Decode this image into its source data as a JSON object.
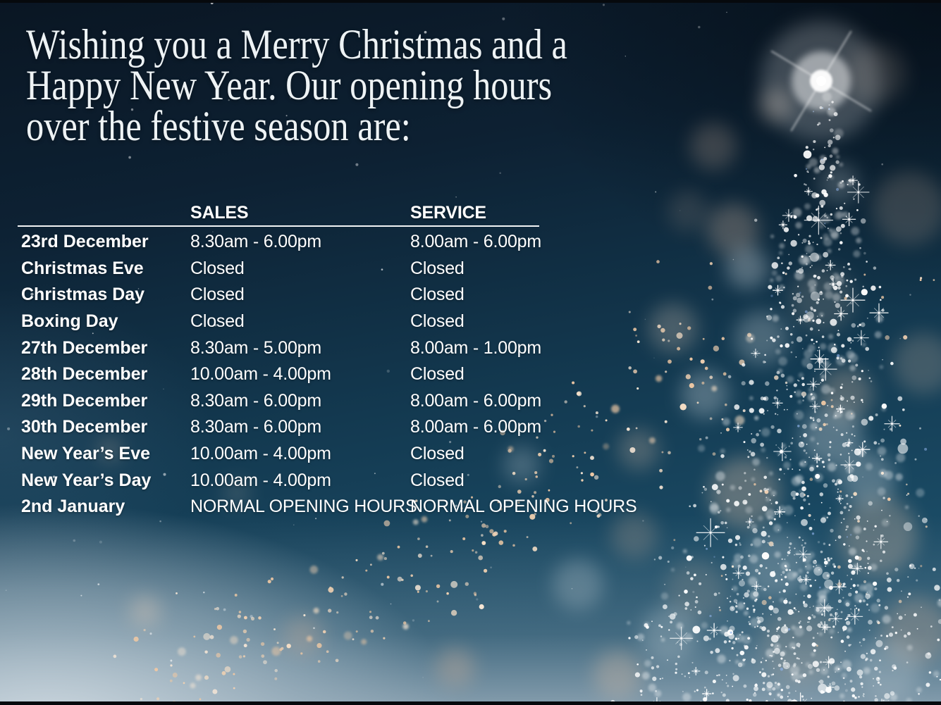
{
  "heading": {
    "line1": "Wishing you a Merry Christmas and a",
    "line2": "Happy New Year. Our opening hours",
    "line3": "over the festive season are:"
  },
  "table": {
    "columns": [
      "SALES",
      "SERVICE"
    ],
    "rows": [
      {
        "label": "23rd December",
        "sales": "8.30am - 6.00pm",
        "service": "8.00am - 6.00pm"
      },
      {
        "label": "Christmas Eve",
        "sales": "Closed",
        "service": "Closed"
      },
      {
        "label": "Christmas Day",
        "sales": "Closed",
        "service": "Closed"
      },
      {
        "label": "Boxing Day",
        "sales": "Closed",
        "service": "Closed"
      },
      {
        "label": "27th December",
        "sales": "8.30am - 5.00pm",
        "service": "8.00am - 1.00pm"
      },
      {
        "label": "28th December",
        "sales": "10.00am - 4.00pm",
        "service": "Closed"
      },
      {
        "label": "29th December",
        "sales": "8.30am - 6.00pm",
        "service": "8.00am - 6.00pm"
      },
      {
        "label": "30th December",
        "sales": "8.30am - 6.00pm",
        "service": "8.00am - 6.00pm"
      },
      {
        "label": "New Year’s Eve",
        "sales": "10.00am - 4.00pm",
        "service": "Closed"
      },
      {
        "label": "New Year’s Day",
        "sales": "10.00am - 4.00pm",
        "service": "Closed"
      },
      {
        "label": "2nd January",
        "sales": "NORMAL OPENING HOURS",
        "service": "NORMAL OPENING HOURS"
      }
    ]
  },
  "colors": {
    "background_top": "#0a1623",
    "background_mid": "#133950",
    "mist_bottom": "#a9bac6",
    "text": "#ffffff",
    "warm_bokeh": "#f2d2b2"
  }
}
